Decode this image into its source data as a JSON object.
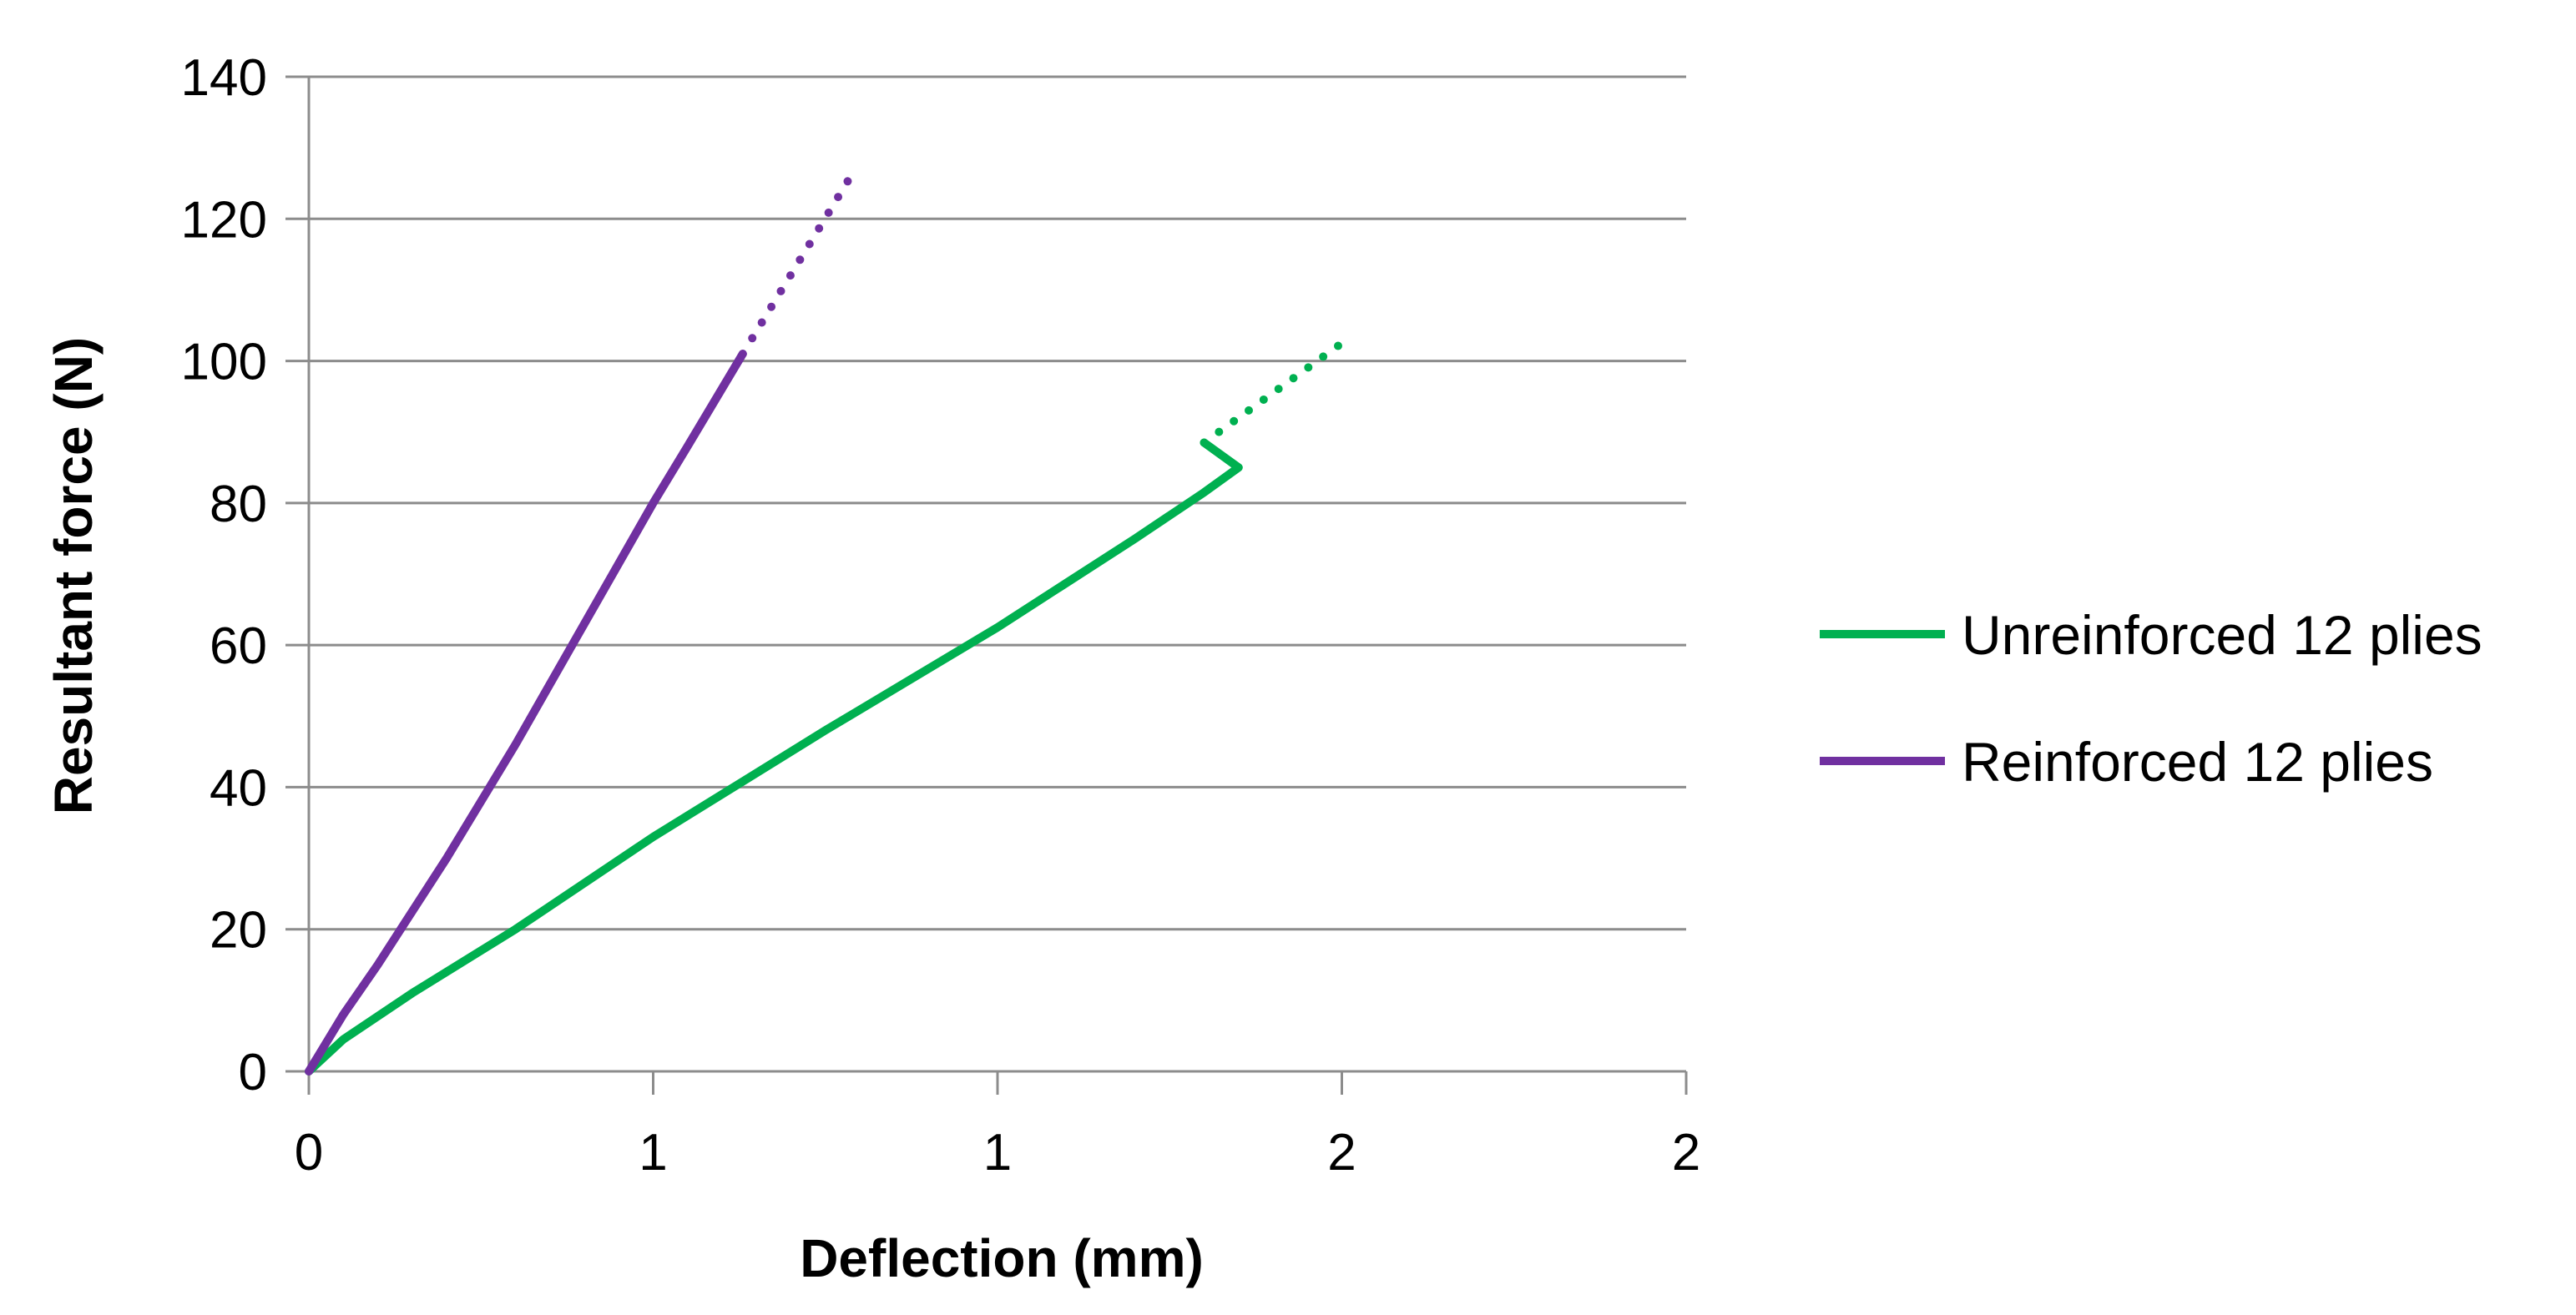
{
  "chart_data": {
    "type": "line",
    "xlabel": "Deflection (mm)",
    "ylabel": "Resultant force (N)",
    "xlim": [
      0,
      2
    ],
    "ylim": [
      0,
      140
    ],
    "x_ticks": [
      {
        "value": 0,
        "label": "0"
      },
      {
        "value": 0.5,
        "label": "1"
      },
      {
        "value": 1.0,
        "label": "1"
      },
      {
        "value": 1.5,
        "label": "2"
      },
      {
        "value": 2.0,
        "label": "2"
      }
    ],
    "y_ticks": [
      0,
      20,
      40,
      60,
      80,
      100,
      120,
      140
    ],
    "grid": "horizontal",
    "legend_position": "right",
    "series": [
      {
        "name": "Unreinforced 12 plies",
        "color": "#00b050",
        "points": [
          [
            0,
            0
          ],
          [
            0.05,
            4.5
          ],
          [
            0.15,
            11
          ],
          [
            0.3,
            20
          ],
          [
            0.5,
            33
          ],
          [
            0.75,
            48
          ],
          [
            1.0,
            62.5
          ],
          [
            1.2,
            75
          ],
          [
            1.3,
            81.5
          ],
          [
            1.35,
            85
          ],
          [
            1.3,
            88.5
          ]
        ],
        "extension_points": [
          [
            1.3,
            88.5
          ],
          [
            1.5,
            102.5
          ]
        ],
        "extension_style": "dotted"
      },
      {
        "name": "Reinforced 12 plies",
        "color": "#7030a0",
        "points": [
          [
            0,
            0
          ],
          [
            0.05,
            8
          ],
          [
            0.1,
            15
          ],
          [
            0.2,
            30
          ],
          [
            0.3,
            46
          ],
          [
            0.4,
            63
          ],
          [
            0.5,
            80
          ],
          [
            0.55,
            88
          ],
          [
            0.63,
            101
          ]
        ],
        "extension_points": [
          [
            0.63,
            101
          ],
          [
            0.79,
            126.5
          ]
        ],
        "extension_style": "dotted"
      }
    ]
  }
}
